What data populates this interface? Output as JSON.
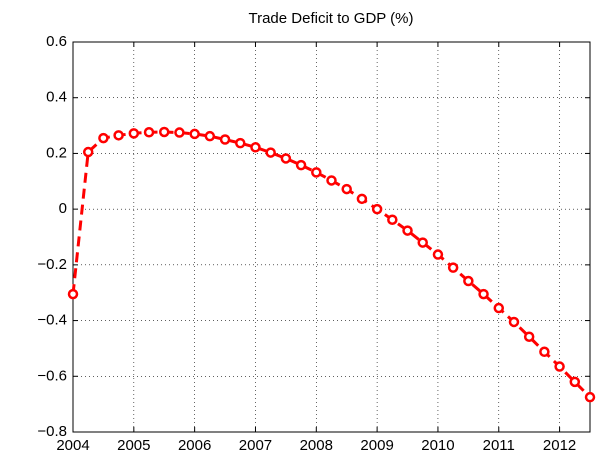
{
  "chart_data": {
    "type": "line",
    "title": "Trade Deficit to GDP (%)",
    "x": [
      2004,
      2004.25,
      2004.5,
      2004.75,
      2005,
      2005.25,
      2005.5,
      2005.75,
      2006,
      2006.25,
      2006.5,
      2006.75,
      2007,
      2007.25,
      2007.5,
      2007.75,
      2008,
      2008.25,
      2008.5,
      2008.75,
      2009,
      2009.25,
      2009.5,
      2009.75,
      2010,
      2010.25,
      2010.5,
      2010.75,
      2011,
      2011.25,
      2011.5,
      2011.75,
      2012,
      2012.25,
      2012.5
    ],
    "series": [
      {
        "color": "#ff0000",
        "values": [
          -0.305,
          0.205,
          0.255,
          0.265,
          0.272,
          0.276,
          0.277,
          0.275,
          0.27,
          0.262,
          0.25,
          0.237,
          0.222,
          0.203,
          0.182,
          0.158,
          0.132,
          0.103,
          0.072,
          0.037,
          0.0,
          -0.038,
          -0.077,
          -0.12,
          -0.163,
          -0.21,
          -0.258,
          -0.305,
          -0.355,
          -0.405,
          -0.458,
          -0.512,
          -0.565,
          -0.62,
          -0.675
        ]
      }
    ],
    "xlim": [
      2004,
      2012.5
    ],
    "xticks": [
      2004,
      2005,
      2006,
      2007,
      2008,
      2009,
      2010,
      2011,
      2012
    ],
    "ylim": [
      -0.8,
      0.6
    ],
    "yticks": [
      {
        "value": -0.8,
        "label": "−0.8"
      },
      {
        "value": -0.6,
        "label": "−0.6"
      },
      {
        "value": -0.4,
        "label": "−0.4"
      },
      {
        "value": -0.2,
        "label": "−0.2"
      },
      0,
      0.2,
      0.4,
      0.6
    ],
    "grid": true
  }
}
